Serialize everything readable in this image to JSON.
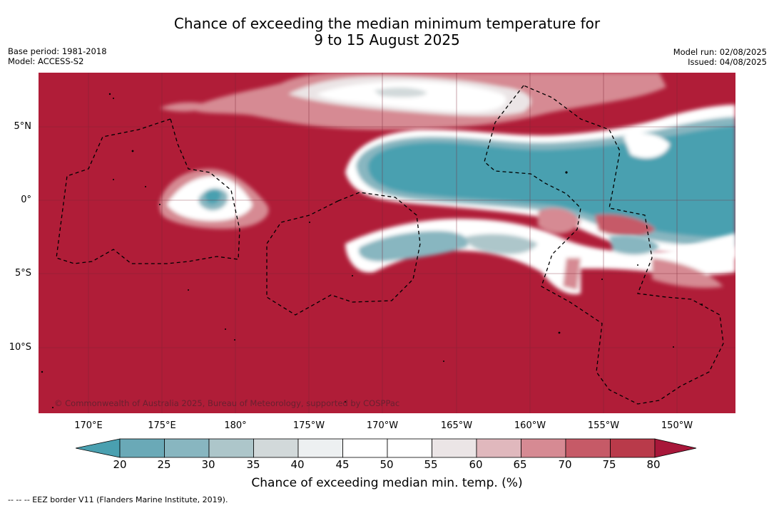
{
  "title_line1": "Chance of exceeding the median minimum temperature for",
  "title_line2": "9 to 15 August 2025",
  "meta_left": {
    "base_period": "Base period: 1981-2018",
    "model": "Model: ACCESS-S2"
  },
  "meta_right": {
    "model_run": "Model run: 02/08/2025",
    "issued": "Issued: 04/08/2025"
  },
  "copyright": "© Commonwealth of Australia 2025, Bureau of Meteorology, supported by COSPPac",
  "lat_labels": [
    "5°N",
    "0°",
    "5°S",
    "10°S"
  ],
  "lon_labels": [
    "170°E",
    "175°E",
    "180°",
    "175°W",
    "170°W",
    "165°W",
    "160°W",
    "155°W",
    "150°W"
  ],
  "colorbar": {
    "ticks": [
      "20",
      "25",
      "30",
      "35",
      "40",
      "45",
      "50",
      "55",
      "60",
      "65",
      "70",
      "75",
      "80"
    ],
    "colors": [
      "#4aa0b0",
      "#6aa9b7",
      "#88b6c0",
      "#adc6ca",
      "#d2d9da",
      "#edf0f1",
      "#ffffff",
      "#ffffff",
      "#ebe5e6",
      "#e0b8bd",
      "#d68a93",
      "#c65a67",
      "#b93a4a",
      "#a8173a"
    ],
    "label": "Chance of exceeding median min. temp. (%)"
  },
  "eez_note": "--  --  -- EEZ border V11 (Flanders Marine Institute, 2019).",
  "map_colors": {
    "ocean_high": "#b01d38",
    "blue": "#4aa0b0",
    "white": "#ffffff",
    "pink": "#d68a93"
  }
}
